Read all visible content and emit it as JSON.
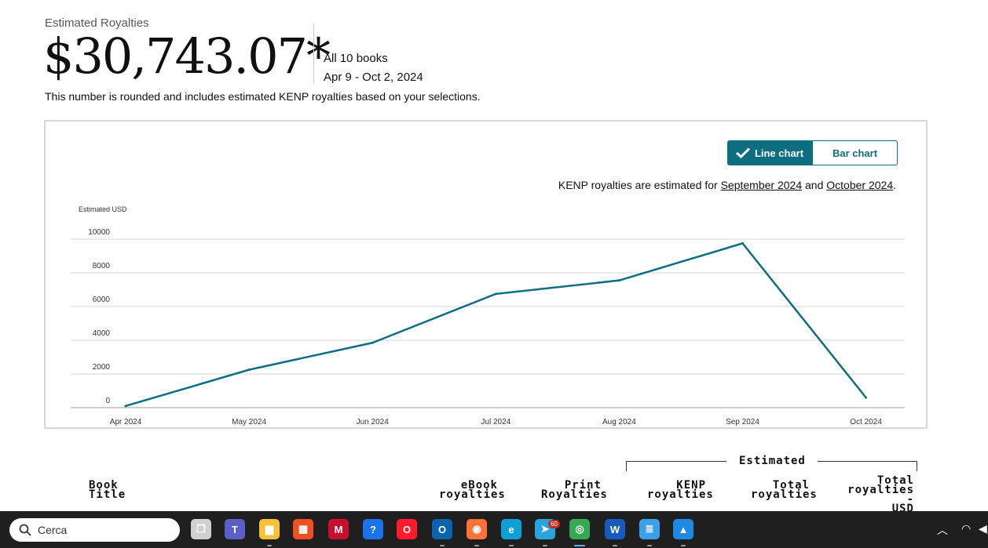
{
  "summary": {
    "label": "Estimated Royalties",
    "amount": "$30,743.07*",
    "scope": "All 10 books",
    "date_range": "Apr 9 - Oct 2, 2024",
    "note": "This number is rounded and includes estimated KENP royalties based on your selections."
  },
  "chart_toggle": {
    "line_label": "Line chart",
    "bar_label": "Bar chart",
    "active": "Line chart"
  },
  "kenp_note": {
    "prefix": "KENP royalties are estimated for ",
    "link1": "September 2024",
    "middle": " and ",
    "link2": "October 2024",
    "suffix": "."
  },
  "chart_data": {
    "type": "line",
    "ylabel": "Estimated USD",
    "categories": [
      "Apr 2024",
      "May 2024",
      "Jun 2024",
      "Jul 2024",
      "Aug 2024",
      "Sep 2024",
      "Oct 2024"
    ],
    "values": [
      100,
      2250,
      3850,
      6750,
      7550,
      9750,
      600
    ],
    "yticks": [
      "0",
      "2000",
      "4000",
      "6000",
      "8000",
      "10000"
    ],
    "ylim": [
      0,
      10000
    ],
    "grid": true,
    "line_color": "#0e6e81"
  },
  "table_header": {
    "group_label": "Estimated",
    "columns": [
      {
        "lines": [
          "Book",
          "Title"
        ]
      },
      {
        "lines": [
          "eBook",
          "royalties"
        ]
      },
      {
        "lines": [
          "Print",
          "Royalties"
        ]
      },
      {
        "lines": [
          "KENP",
          "royalties"
        ]
      },
      {
        "lines": [
          "Total",
          "royalties"
        ]
      },
      {
        "lines": [
          "Total",
          "royalties -",
          "USD"
        ]
      }
    ]
  },
  "taskbar": {
    "search_placeholder": "Cerca",
    "apps": [
      {
        "name": "task-view-icon",
        "color": "#d0d0d0",
        "glyph": "❐"
      },
      {
        "name": "teams-icon",
        "color": "#5b5fc7",
        "glyph": "T"
      },
      {
        "name": "file-explorer-icon",
        "color": "#f5c136",
        "glyph": "▆"
      },
      {
        "name": "microsoft-store-icon",
        "color": "#f25022",
        "glyph": "▦"
      },
      {
        "name": "mcafee-icon",
        "color": "#c8102e",
        "glyph": "M"
      },
      {
        "name": "help-icon",
        "color": "#1a73e8",
        "glyph": "?"
      },
      {
        "name": "opera-icon",
        "color": "#ff1b2d",
        "glyph": "O"
      },
      {
        "name": "outlook-icon",
        "color": "#0a64ad",
        "glyph": "O"
      },
      {
        "name": "firefox-icon",
        "color": "#ff7139",
        "glyph": "◉"
      },
      {
        "name": "edge-icon",
        "color": "#0c9fd8",
        "glyph": "e"
      },
      {
        "name": "telegram-icon",
        "color": "#2aa3df",
        "glyph": "➤"
      },
      {
        "name": "chrome-icon",
        "color": "#34a853",
        "glyph": "◎"
      },
      {
        "name": "word-icon",
        "color": "#185abd",
        "glyph": "W"
      },
      {
        "name": "notepad-icon",
        "color": "#3aa0e8",
        "glyph": "≣"
      },
      {
        "name": "photos-icon",
        "color": "#1e88e5",
        "glyph": "▲"
      }
    ],
    "telegram_badge": "60"
  }
}
